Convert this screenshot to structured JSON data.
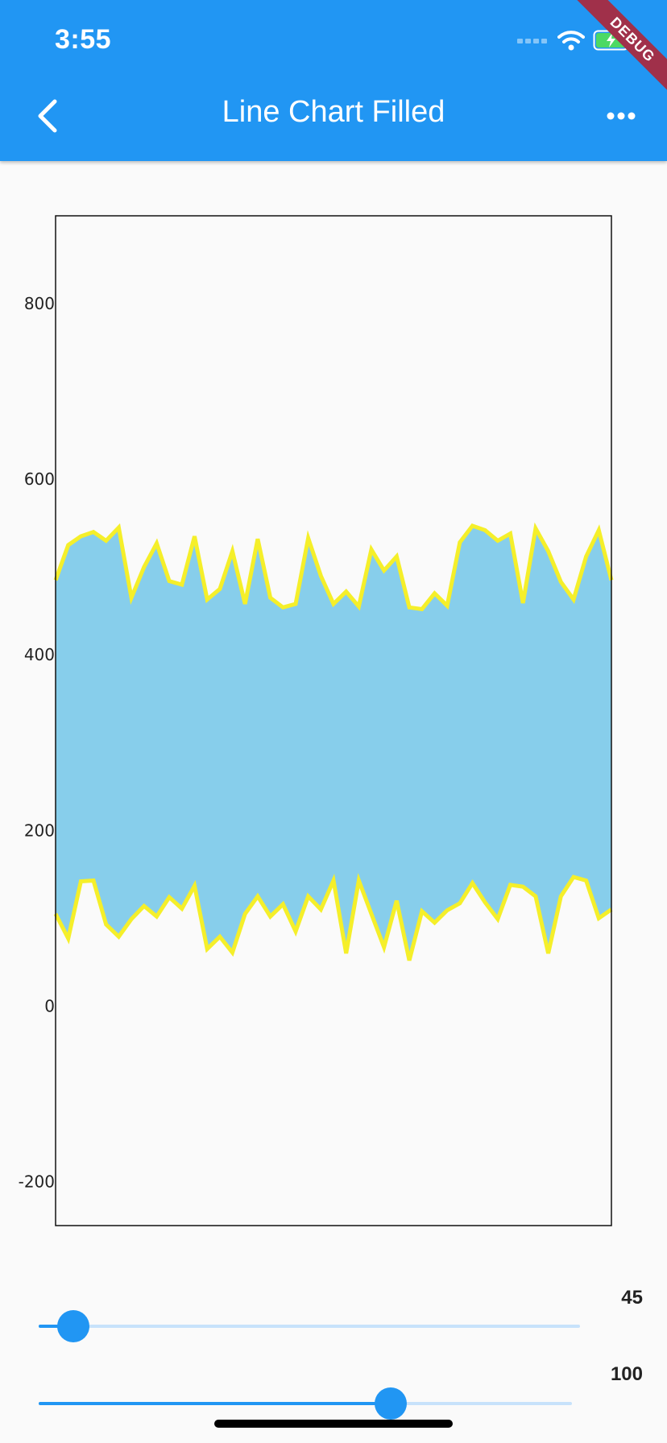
{
  "status_bar": {
    "time": "3:55",
    "icons": [
      "signal-icon",
      "wifi-icon",
      "battery-charging-icon"
    ]
  },
  "app_bar": {
    "title": "Line Chart Filled",
    "back_icon": "chevron-left-icon",
    "more_icon": "more-horizontal-icon",
    "debug_label": "DEBUG",
    "background_color": "#2196f3"
  },
  "chart_data": {
    "type": "area",
    "title": "",
    "xlabel": "",
    "ylabel": "",
    "ylim": [
      -250,
      900
    ],
    "yticks": [
      800,
      600,
      400,
      200,
      0,
      -200
    ],
    "grid": false,
    "fill_color": "#87ceeb",
    "line_color": "#f5ef2a",
    "x": [
      0,
      1,
      2,
      3,
      4,
      5,
      6,
      7,
      8,
      9,
      10,
      11,
      12,
      13,
      14,
      15,
      16,
      17,
      18,
      19,
      20,
      21,
      22,
      23,
      24,
      25,
      26,
      27,
      28,
      29,
      30,
      31,
      32,
      33,
      34,
      35,
      36,
      37,
      38,
      39,
      40,
      41,
      42,
      43,
      44
    ],
    "series": [
      {
        "values": [
          485,
          525,
          535,
          540,
          530,
          545,
          465,
          500,
          527,
          484,
          480,
          535,
          463,
          475,
          518,
          458,
          532,
          465,
          454,
          458,
          533,
          490,
          458,
          472,
          455,
          520,
          496,
          512,
          454,
          452,
          470,
          456,
          528,
          547,
          542,
          530,
          538,
          459,
          544,
          518,
          483,
          463,
          512,
          542,
          485
        ]
      },
      {
        "values": [
          105,
          77,
          142,
          143,
          93,
          79,
          99,
          114,
          102,
          124,
          111,
          137,
          65,
          79,
          61,
          105,
          125,
          102,
          116,
          85,
          125,
          110,
          143,
          60,
          143,
          105,
          67,
          120,
          52,
          108,
          95,
          109,
          117,
          140,
          118,
          99,
          138,
          136,
          125,
          60,
          125,
          147,
          143,
          100,
          110
        ]
      }
    ]
  },
  "sliders": [
    {
      "value_label": "45",
      "fraction": 0.064
    },
    {
      "value_label": "100",
      "fraction": 0.66
    }
  ]
}
